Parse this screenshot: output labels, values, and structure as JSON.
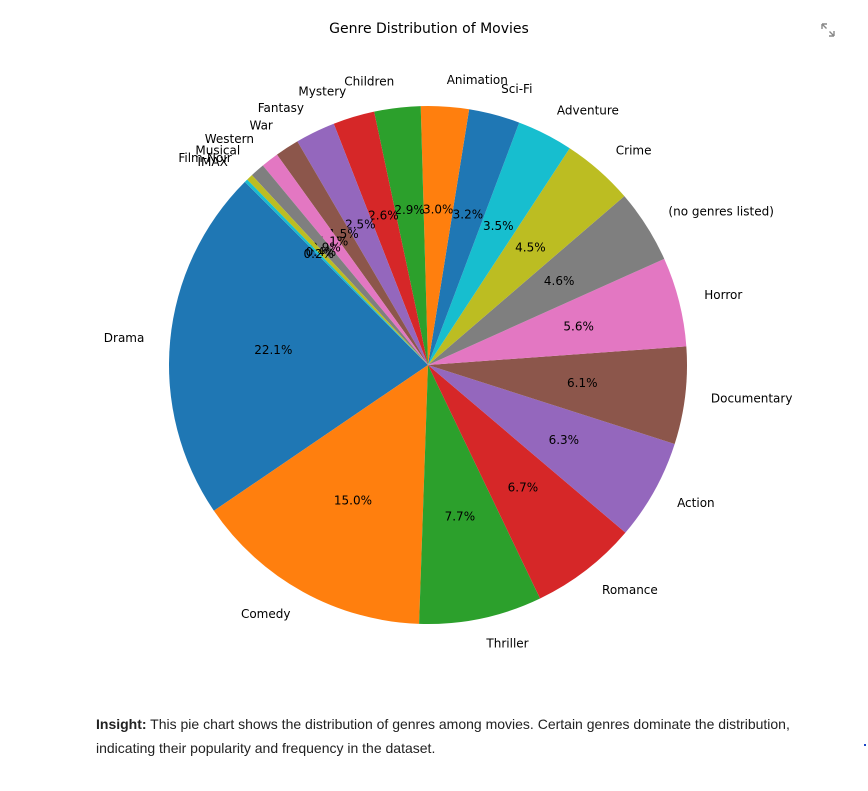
{
  "chart_data": {
    "type": "pie",
    "title": "Genre Distribution of Movies",
    "slices": [
      {
        "label": "Drama",
        "value": 22.1,
        "pct_label": "22.1%",
        "color": "#1f77b4"
      },
      {
        "label": "Comedy",
        "value": 15.0,
        "pct_label": "15.0%",
        "color": "#ff7f0e"
      },
      {
        "label": "Thriller",
        "value": 7.7,
        "pct_label": "7.7%",
        "color": "#2ca02c"
      },
      {
        "label": "Romance",
        "value": 6.7,
        "pct_label": "6.7%",
        "color": "#d62728"
      },
      {
        "label": "Action",
        "value": 6.3,
        "pct_label": "6.3%",
        "color": "#9467bd"
      },
      {
        "label": "Documentary",
        "value": 6.1,
        "pct_label": "6.1%",
        "color": "#8c564b"
      },
      {
        "label": "Horror",
        "value": 5.6,
        "pct_label": "5.6%",
        "color": "#e377c2"
      },
      {
        "label": "(no genres listed)",
        "value": 4.6,
        "pct_label": "4.6%",
        "color": "#7f7f7f"
      },
      {
        "label": "Crime",
        "value": 4.5,
        "pct_label": "4.5%",
        "color": "#bcbd22"
      },
      {
        "label": "Adventure",
        "value": 3.5,
        "pct_label": "3.5%",
        "color": "#17becf"
      },
      {
        "label": "Sci-Fi",
        "value": 3.2,
        "pct_label": "3.2%",
        "color": "#1f77b4"
      },
      {
        "label": "Animation",
        "value": 3.0,
        "pct_label": "3.0%",
        "color": "#ff7f0e"
      },
      {
        "label": "Children",
        "value": 2.9,
        "pct_label": "2.9%",
        "color": "#2ca02c"
      },
      {
        "label": "Mystery",
        "value": 2.6,
        "pct_label": "2.6%",
        "color": "#d62728"
      },
      {
        "label": "Fantasy",
        "value": 2.5,
        "pct_label": "2.5%",
        "color": "#9467bd"
      },
      {
        "label": "War",
        "value": 1.5,
        "pct_label": "1.5%",
        "color": "#8c564b"
      },
      {
        "label": "Western",
        "value": 1.1,
        "pct_label": "1.1%",
        "color": "#e377c2"
      },
      {
        "label": "Musical",
        "value": 0.9,
        "pct_label": "0.9%",
        "color": "#7f7f7f"
      },
      {
        "label": "Film-Noir",
        "value": 0.4,
        "pct_label": "0.4%",
        "color": "#bcbd22"
      },
      {
        "label": "IMAX",
        "value": 0.2,
        "pct_label": "0.2%",
        "color": "#17becf"
      }
    ]
  },
  "insight": {
    "label": "Insight:",
    "text": " This pie chart shows the distribution of genres among movies. Certain genres dominate the distribution, indicating their popularity and frequency in the dataset."
  },
  "icons": {
    "expand": "expand-icon"
  }
}
